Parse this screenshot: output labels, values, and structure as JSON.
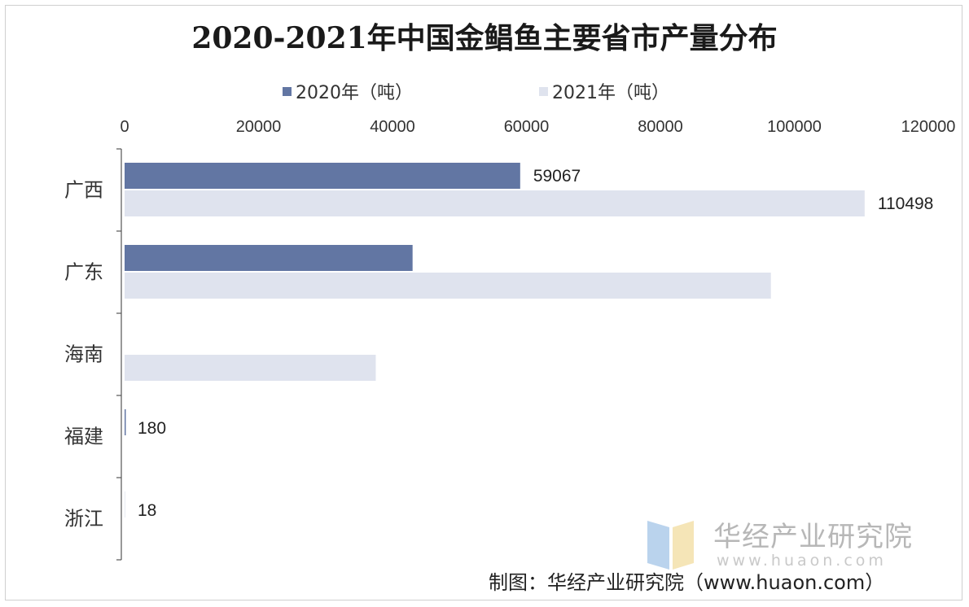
{
  "chart_data": {
    "type": "bar",
    "orientation": "horizontal",
    "title": "2020-2021年中国金鲳鱼主要省市产量分布",
    "categories": [
      "广西",
      "广东",
      "海南",
      "福建",
      "浙江"
    ],
    "series": [
      {
        "name": "2020年（吨）",
        "color": "#6276a3",
        "values": [
          59067,
          43000,
          0,
          180,
          18
        ]
      },
      {
        "name": "2021年（吨）",
        "color": "#dfe3ee",
        "values": [
          110498,
          96500,
          37500,
          0,
          0
        ]
      }
    ],
    "data_labels": [
      {
        "category": "广西",
        "series": "2020年（吨）",
        "text": "59067"
      },
      {
        "category": "广西",
        "series": "2021年（吨）",
        "text": "110498"
      },
      {
        "category": "福建",
        "series": "2020年（吨）",
        "text": "180"
      },
      {
        "category": "浙江",
        "series": "2020年（吨）",
        "text": "18"
      }
    ],
    "xlim": [
      0,
      120000
    ],
    "ticks": [
      0,
      20000,
      40000,
      60000,
      80000,
      100000,
      120000
    ],
    "tick_labels": [
      "0",
      "20000",
      "40000",
      "60000",
      "80000",
      "100000",
      "120000"
    ],
    "axis_position": "top",
    "legend_position": "top",
    "grid": false
  },
  "source": "制图：华经产业研究院（www.huaon.com）",
  "watermark": {
    "name": "华经产业研究院",
    "url": "www.huaon.com"
  }
}
